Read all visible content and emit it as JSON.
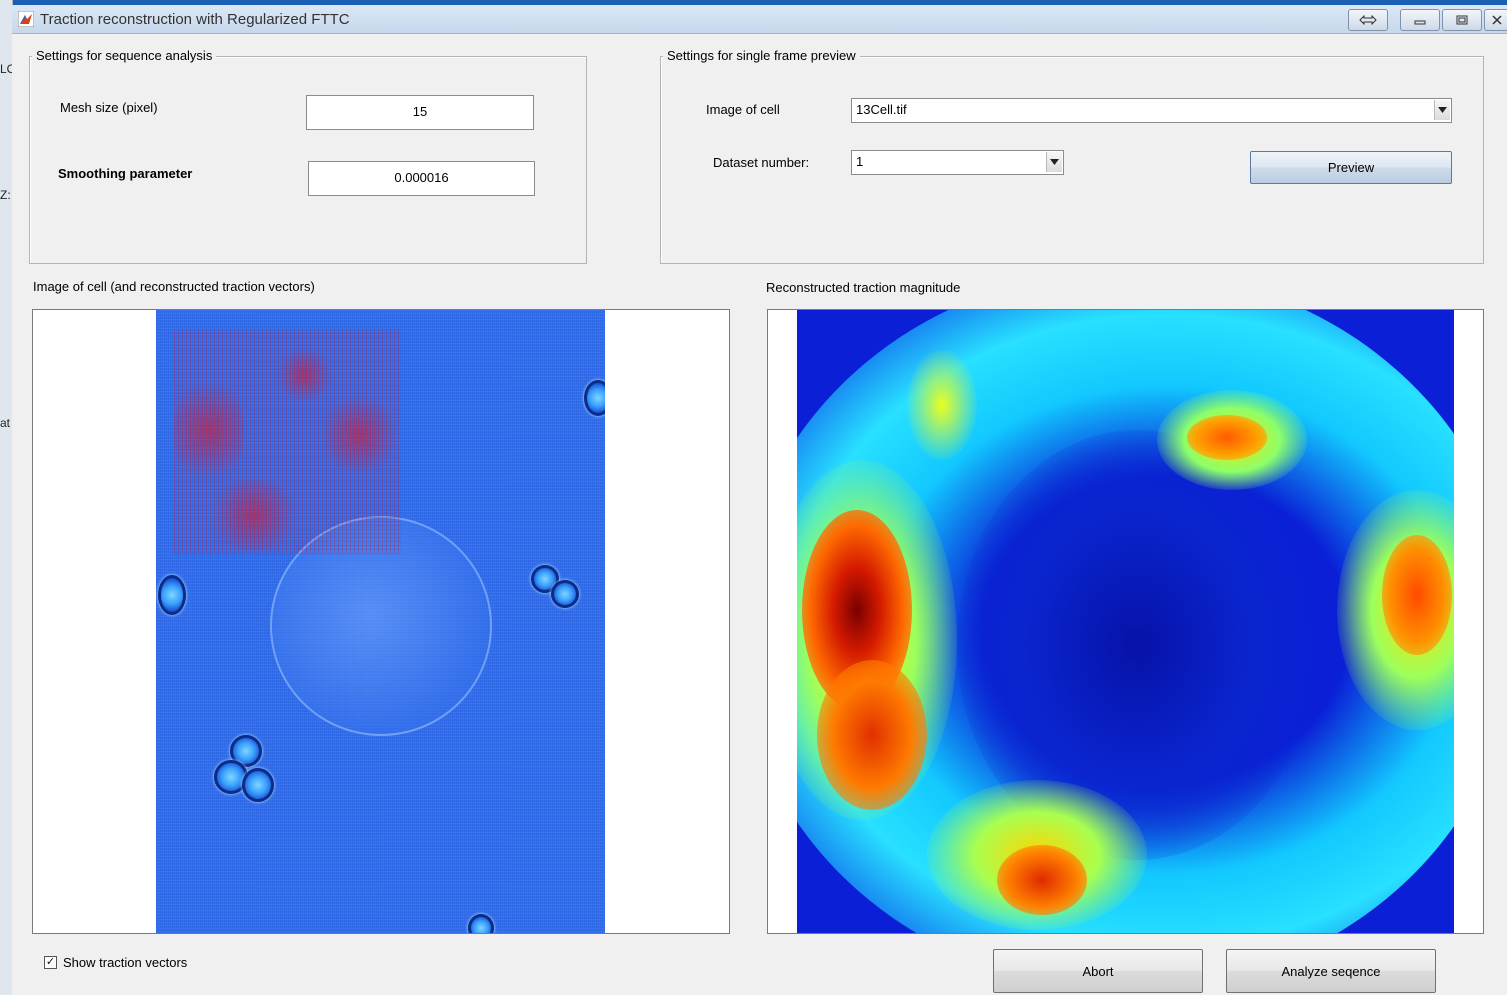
{
  "window": {
    "title": "Traction reconstruction with Regularized FTTC",
    "icons": [
      "matlab-icon",
      "restore-arrows-icon",
      "minimize-icon",
      "maximize-icon",
      "close-icon"
    ]
  },
  "desktop_fragments": [
    "LO",
    "Z:",
    "at"
  ],
  "sequence_settings": {
    "title": "Settings for sequence analysis",
    "mesh_size_label": "Mesh size (pixel)",
    "mesh_size_value": "15",
    "smoothing_label": "Smoothing parameter",
    "smoothing_value": "0.000016"
  },
  "preview_settings": {
    "title": "Settings for single frame preview",
    "image_label": "Image of cell",
    "image_value": "13Cell.tif",
    "dataset_label": "Dataset number:",
    "dataset_value": "1",
    "preview_label": "Preview"
  },
  "panels": {
    "cell_image_title": "Image of cell (and reconstructed traction vectors)",
    "magnitude_title": "Reconstructed traction magnitude"
  },
  "show_vectors": {
    "label": "Show traction vectors",
    "checked": true,
    "check_glyph": "✓"
  },
  "buttons": {
    "abort_label": "Abort",
    "analyze_label": "Analyze seqence"
  },
  "colors": {
    "accent_blue": "#2f6ff0",
    "jet_dark_blue": "#0a1fd6",
    "jet_red": "#d41a00"
  }
}
